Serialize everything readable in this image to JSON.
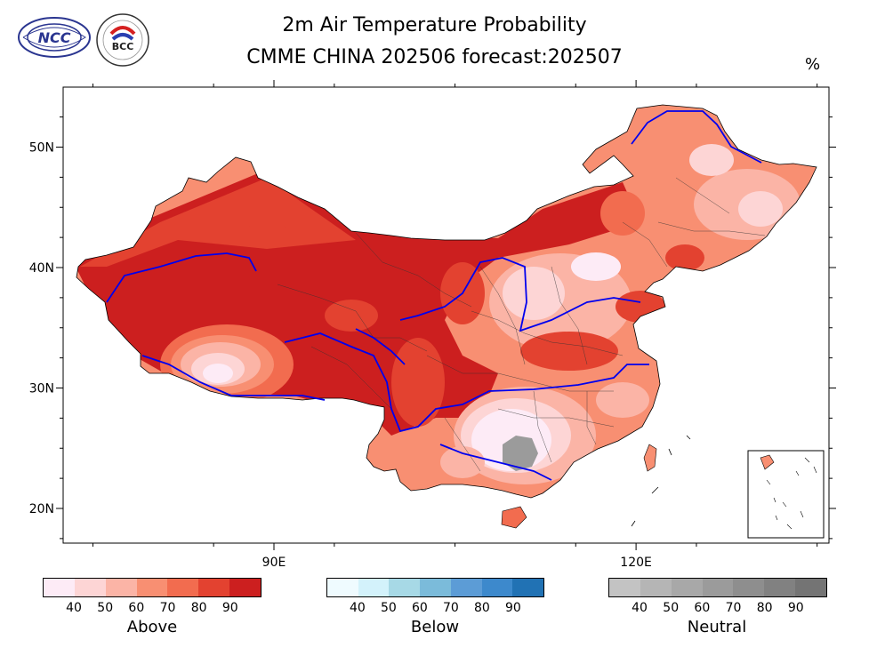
{
  "header": {
    "title": "2m Air Temperature Probability",
    "subtitle": "CMME CHINA 202506 forecast:202507",
    "unit": "%",
    "logo_left_text": "NCC",
    "logo_right_text": "BCC"
  },
  "axes": {
    "y_ticks": [
      {
        "value": 50,
        "label": "50N"
      },
      {
        "value": 40,
        "label": "40N"
      },
      {
        "value": 30,
        "label": "30N"
      },
      {
        "value": 20,
        "label": "20N"
      }
    ],
    "x_ticks": [
      {
        "value": 90,
        "label": "90E"
      },
      {
        "value": 120,
        "label": "120E"
      }
    ]
  },
  "legend": {
    "above": {
      "label": "Above",
      "ticks": [
        "40",
        "50",
        "60",
        "70",
        "80",
        "90"
      ],
      "colors": [
        "#fdebf6",
        "#fdd5d5",
        "#fbb4a6",
        "#f88f72",
        "#f26c4f",
        "#e34230",
        "#cc1f1f"
      ]
    },
    "below": {
      "label": "Below",
      "ticks": [
        "40",
        "50",
        "60",
        "70",
        "80",
        "90"
      ],
      "colors": [
        "#effbff",
        "#d3f2fb",
        "#a7d9e6",
        "#7bbbda",
        "#5c9cd6",
        "#3d89cc",
        "#2172b4"
      ]
    },
    "neutral": {
      "label": "Neutral",
      "ticks": [
        "40",
        "50",
        "60",
        "70",
        "80",
        "90"
      ],
      "colors": [
        "#c3c3c3",
        "#b5b5b5",
        "#a8a8a8",
        "#9b9b9b",
        "#8e8e8e",
        "#818181",
        "#747474"
      ]
    }
  }
}
